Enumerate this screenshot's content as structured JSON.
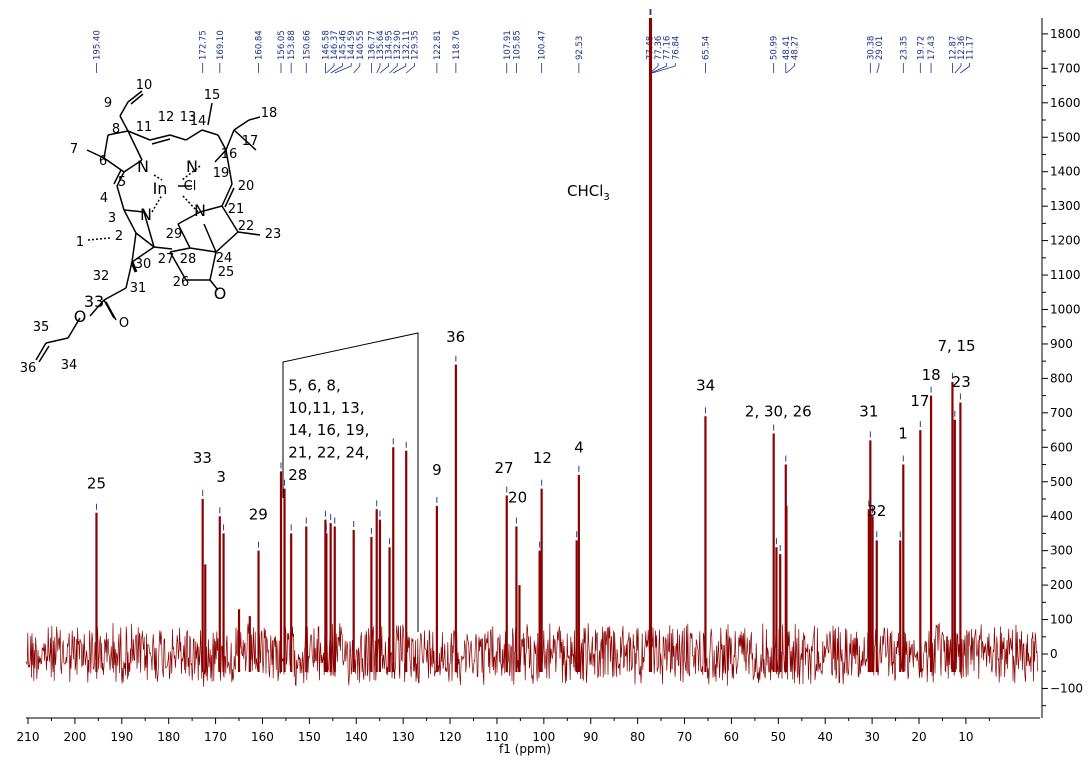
{
  "chart_data": {
    "type": "line",
    "xlabel": "f1 (ppm)",
    "xlim": [
      210,
      0
    ],
    "ylim": [
      -150,
      1850
    ],
    "x_ticks": [
      "210",
      "200",
      "190",
      "180",
      "170",
      "160",
      "150",
      "140",
      "130",
      "120",
      "110",
      "100",
      "90",
      "80",
      "70",
      "60",
      "50",
      "40",
      "30",
      "20",
      "10"
    ],
    "y_ticks": [
      "-100",
      "0",
      "100",
      "200",
      "300",
      "400",
      "500",
      "600",
      "700",
      "800",
      "900",
      "1000",
      "1100",
      "1200",
      "1300",
      "1400",
      "1500",
      "1600",
      "1700",
      "1800"
    ],
    "peak_labels": [
      "195.40",
      "172.75",
      "169.10",
      "160.84",
      "156.05",
      "153.88",
      "150.66",
      "146.58",
      "146.37",
      "145.46",
      "144.59",
      "140.55",
      "136.77",
      "135.64",
      "134.95",
      "132.90",
      "132.11",
      "129.35",
      "122.81",
      "118.76",
      "107.91",
      "105.85",
      "100.47",
      "92.53",
      "77.48",
      "77.36",
      "77.16",
      "76.84",
      "65.54",
      "50.99",
      "48.41",
      "48.27",
      "30.38",
      "29.01",
      "23.35",
      "19.72",
      "17.43",
      "12.87",
      "12.36",
      "11.17"
    ],
    "peaks": [
      {
        "x": 195.4,
        "y": 410
      },
      {
        "x": 172.75,
        "y": 450
      },
      {
        "x": 172.2,
        "y": 260
      },
      {
        "x": 169.1,
        "y": 400
      },
      {
        "x": 168.3,
        "y": 350
      },
      {
        "x": 165.0,
        "y": 130
      },
      {
        "x": 162.7,
        "y": 110
      },
      {
        "x": 160.84,
        "y": 300
      },
      {
        "x": 156.05,
        "y": 530
      },
      {
        "x": 155.3,
        "y": 480
      },
      {
        "x": 153.88,
        "y": 350
      },
      {
        "x": 150.66,
        "y": 370
      },
      {
        "x": 146.58,
        "y": 390
      },
      {
        "x": 146.37,
        "y": 350
      },
      {
        "x": 145.46,
        "y": 380
      },
      {
        "x": 144.59,
        "y": 370
      },
      {
        "x": 140.55,
        "y": 360
      },
      {
        "x": 136.77,
        "y": 340
      },
      {
        "x": 135.64,
        "y": 420
      },
      {
        "x": 134.95,
        "y": 390
      },
      {
        "x": 132.9,
        "y": 310
      },
      {
        "x": 132.11,
        "y": 600
      },
      {
        "x": 129.35,
        "y": 590
      },
      {
        "x": 122.81,
        "y": 430
      },
      {
        "x": 118.76,
        "y": 840
      },
      {
        "x": 107.91,
        "y": 460
      },
      {
        "x": 105.85,
        "y": 370
      },
      {
        "x": 105.2,
        "y": 200
      },
      {
        "x": 100.47,
        "y": 480
      },
      {
        "x": 100.9,
        "y": 300
      },
      {
        "x": 92.53,
        "y": 520
      },
      {
        "x": 93.0,
        "y": 330
      },
      {
        "x": 77.36,
        "y": 1860
      },
      {
        "x": 77.16,
        "y": 1860
      },
      {
        "x": 65.54,
        "y": 690
      },
      {
        "x": 50.99,
        "y": 640
      },
      {
        "x": 50.4,
        "y": 310
      },
      {
        "x": 49.6,
        "y": 290
      },
      {
        "x": 48.41,
        "y": 550
      },
      {
        "x": 48.27,
        "y": 430
      },
      {
        "x": 30.38,
        "y": 620
      },
      {
        "x": 30.7,
        "y": 420
      },
      {
        "x": 29.9,
        "y": 400
      },
      {
        "x": 29.01,
        "y": 330
      },
      {
        "x": 23.35,
        "y": 550
      },
      {
        "x": 24.0,
        "y": 330
      },
      {
        "x": 19.72,
        "y": 650
      },
      {
        "x": 17.43,
        "y": 750
      },
      {
        "x": 12.87,
        "y": 790
      },
      {
        "x": 12.36,
        "y": 680
      },
      {
        "x": 11.17,
        "y": 730
      }
    ],
    "annotations": [
      {
        "text": "25",
        "x": 195.4,
        "y": 480
      },
      {
        "text": "33",
        "x": 172.8,
        "y": 555
      },
      {
        "text": "3",
        "x": 168.8,
        "y": 500
      },
      {
        "text": "29",
        "x": 160.9,
        "y": 390
      },
      {
        "text": "5, 6, 8,",
        "x": 154.5,
        "y": 765
      },
      {
        "text": "10,11, 13,",
        "x": 154.5,
        "y": 700
      },
      {
        "text": "14, 16, 19,",
        "x": 154.5,
        "y": 635
      },
      {
        "text": "21, 22, 24,",
        "x": 154.5,
        "y": 570
      },
      {
        "text": "28",
        "x": 154.5,
        "y": 505
      },
      {
        "text": "9",
        "x": 122.8,
        "y": 520
      },
      {
        "text": "36",
        "x": 118.8,
        "y": 905
      },
      {
        "text": "27",
        "x": 108.5,
        "y": 525
      },
      {
        "text": "20",
        "x": 105.6,
        "y": 440
      },
      {
        "text": "12",
        "x": 100.3,
        "y": 555
      },
      {
        "text": "4",
        "x": 92.5,
        "y": 585
      },
      {
        "text": "CHCl3",
        "x": 90.5,
        "y": 1330
      },
      {
        "text": "34",
        "x": 65.5,
        "y": 765
      },
      {
        "text": "2, 30, 26",
        "x": 50.0,
        "y": 690
      },
      {
        "text": "31",
        "x": 30.7,
        "y": 690
      },
      {
        "text": "32",
        "x": 29.0,
        "y": 400
      },
      {
        "text": "1",
        "x": 23.4,
        "y": 625
      },
      {
        "text": "17",
        "x": 19.8,
        "y": 720
      },
      {
        "text": "18",
        "x": 17.4,
        "y": 795
      },
      {
        "text": "7, 15",
        "x": 12.0,
        "y": 880
      },
      {
        "text": "23",
        "x": 11.0,
        "y": 775
      }
    ]
  },
  "molecule": {
    "atoms": [
      "10",
      "9",
      "8",
      "11",
      "12",
      "13",
      "15",
      "14",
      "18",
      "17",
      "16",
      "7",
      "6",
      "N",
      "N",
      "19",
      "20",
      "In",
      "Cl",
      "5",
      "4",
      "21",
      "22",
      "23",
      "3",
      "N",
      "N",
      "29",
      "1",
      "2",
      "28",
      "24",
      "27",
      "30",
      "26",
      "25",
      "O",
      "32",
      "31",
      "33",
      "O",
      "O",
      "35",
      "34",
      "36"
    ]
  },
  "colors": {
    "spectrum": "#8b0000",
    "tick_marks": "#2a3d9a",
    "peak_ppm": "#1a2f8a",
    "axis": "#000000"
  }
}
